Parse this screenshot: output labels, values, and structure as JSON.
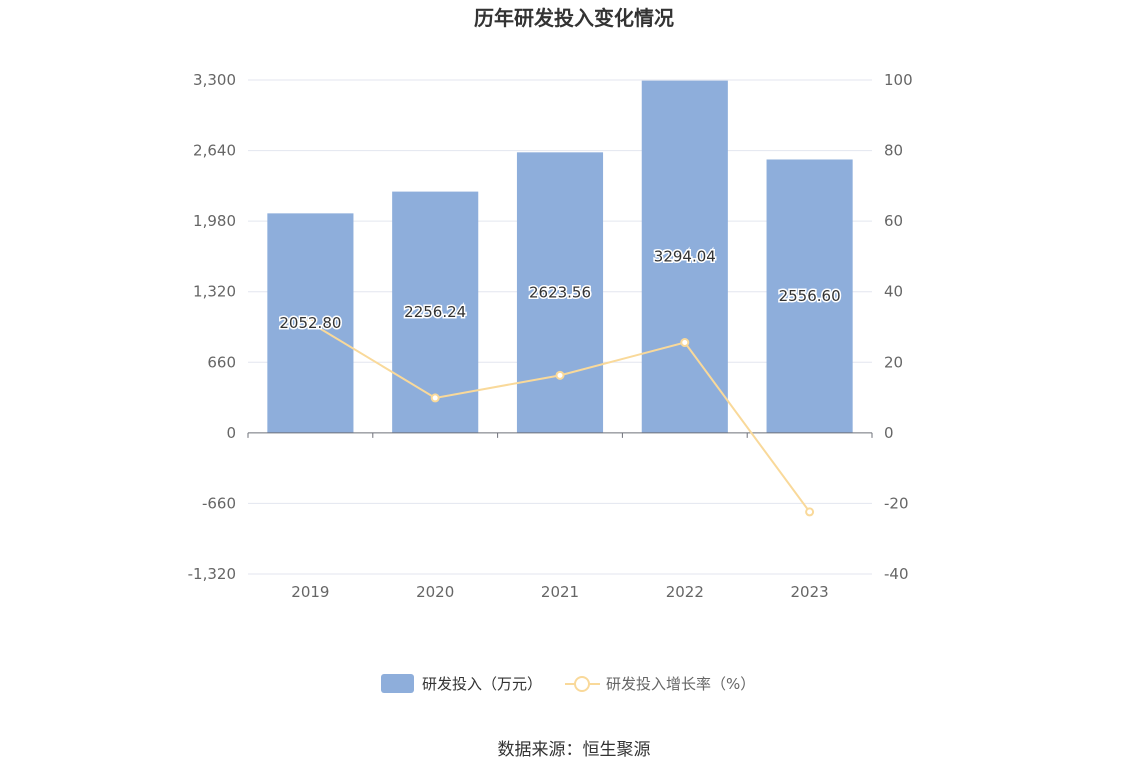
{
  "chart_data": {
    "type": "bar",
    "title": "历年研发投入变化情况",
    "categories": [
      "2019",
      "2020",
      "2021",
      "2022",
      "2023"
    ],
    "series": [
      {
        "name": "研发投入（万元）",
        "type": "bar",
        "axis": "left",
        "values": [
          2052.8,
          2256.24,
          2623.56,
          3294.04,
          2556.6
        ],
        "labels": [
          "2052.80",
          "2256.24",
          "2623.56",
          "3294.04",
          "2556.60"
        ],
        "color": "#8eaedb"
      },
      {
        "name": "研发投入增长率（%）",
        "type": "line",
        "axis": "right",
        "values": [
          31.2,
          9.9,
          16.3,
          25.6,
          -22.4
        ],
        "color": "#f9d99a"
      }
    ],
    "y_left": {
      "min": -1320,
      "max": 3300,
      "ticks": [
        3300,
        2640,
        1980,
        1320,
        660,
        0,
        -660,
        -1320
      ],
      "tick_labels": [
        "3,300",
        "2,640",
        "1,980",
        "1,320",
        "660",
        "0",
        "-660",
        "-1,320"
      ]
    },
    "y_right": {
      "min": -40,
      "max": 100,
      "ticks": [
        100,
        80,
        60,
        40,
        20,
        0,
        -20,
        -40
      ],
      "tick_labels": [
        "100",
        "80",
        "60",
        "40",
        "20",
        "0",
        "-20",
        "-40"
      ]
    },
    "grid": true,
    "legend_position": "bottom",
    "source": "数据来源：恒生聚源"
  }
}
